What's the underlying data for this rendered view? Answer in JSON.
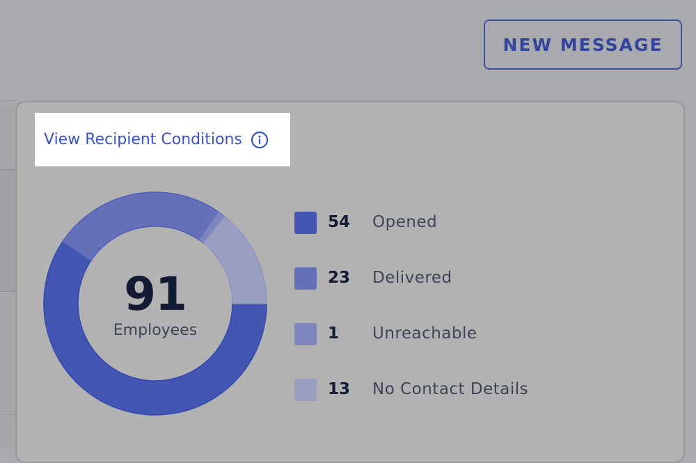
{
  "header": {
    "new_message_label": "NEW MESSAGE"
  },
  "card": {
    "recipient_conditions_label": "View Recipient Conditions",
    "info_icon": "info-circle-icon"
  },
  "summary": {
    "total": "91",
    "total_label": "Employees",
    "legend": [
      {
        "count": "54",
        "label": "Opened",
        "color": "#4356b1"
      },
      {
        "count": "23",
        "label": "Delivered",
        "color": "#6470b8"
      },
      {
        "count": "1",
        "label": "Unreachable",
        "color": "#7d86bc"
      },
      {
        "count": "13",
        "label": "No Contact Details",
        "color": "#9a9fbf"
      }
    ]
  },
  "chart_data": {
    "type": "pie",
    "style": "donut",
    "categories": [
      "Opened",
      "Delivered",
      "Unreachable",
      "No Contact Details"
    ],
    "values": [
      54,
      23,
      1,
      13
    ],
    "colors": [
      "#4356b1",
      "#6470b8",
      "#7d86bc",
      "#9a9fbf"
    ],
    "center_value": "91",
    "center_label": "Employees",
    "legend_position": "right"
  },
  "colors": {
    "accent": "#3551d6",
    "button_text": "#33449e",
    "overlay_background": "#a9aaae"
  }
}
